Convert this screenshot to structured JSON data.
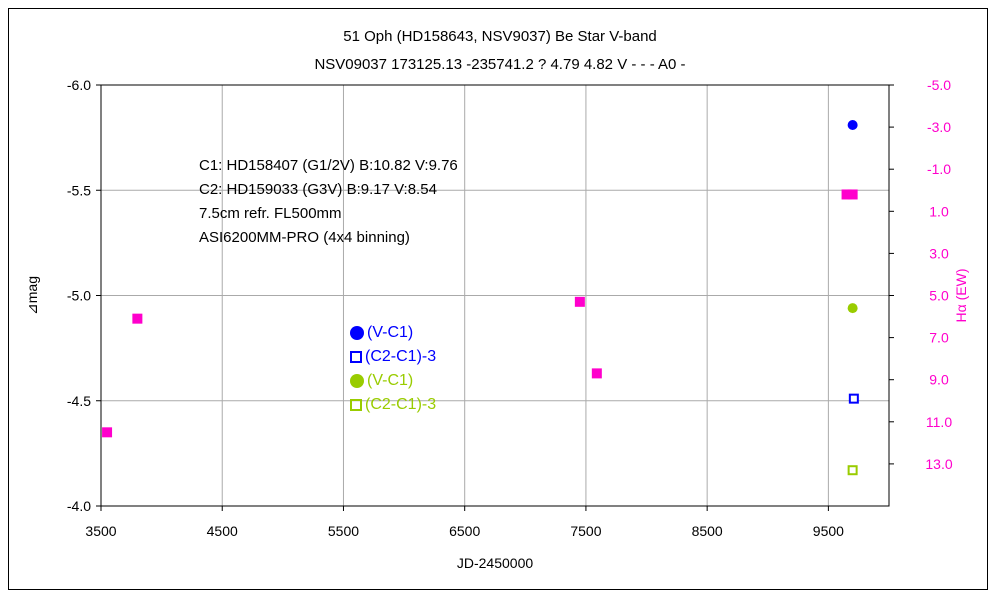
{
  "chart_data": {
    "type": "scatter",
    "title": "51 Oph (HD158643, NSV9037)    Be Star    V-band",
    "subtitle": "NSV09037 173125.13 -235741.2 ? 4.79 4.82 V - - - A0 -",
    "xlabel": "JD-2450000",
    "ylabel": "⊿mag",
    "y2label": "Hα (EW)",
    "xlim": [
      3500,
      10000
    ],
    "ylim": [
      -6.0,
      -4.0
    ],
    "y_inverted": true,
    "y2lim": [
      -5.0,
      15.0
    ],
    "x_ticks": [
      "3500",
      "4500",
      "5500",
      "6500",
      "7500",
      "8500",
      "9500"
    ],
    "y_ticks": [
      "-6.0",
      "-5.5",
      "-5.0",
      "-4.5",
      "-4.0"
    ],
    "y2_ticks": [
      "-5.0",
      "-3.0",
      "-1.0",
      "1.0",
      "3.0",
      "5.0",
      "7.0",
      "9.0",
      "11.0",
      "13.0"
    ],
    "grid": true,
    "series": [
      {
        "name": "(V-C1)",
        "color": "#0000ff",
        "marker": "filled-circle",
        "axis": "left",
        "points": [
          {
            "x": 9700,
            "y": -5.81
          }
        ]
      },
      {
        "name": "(C2-C1)-3",
        "color": "#0000ff",
        "marker": "open-square",
        "axis": "left",
        "points": [
          {
            "x": 9710,
            "y": -4.51
          }
        ]
      },
      {
        "name": "(V-C1)",
        "color": "#99cc00",
        "marker": "filled-circle",
        "axis": "left",
        "points": [
          {
            "x": 9700,
            "y": -4.94
          }
        ]
      },
      {
        "name": "(C2-C1)-3",
        "color": "#99cc00",
        "marker": "open-square",
        "axis": "left",
        "points": [
          {
            "x": 9700,
            "y": -4.17
          }
        ]
      },
      {
        "name": "",
        "color": "#ff00cc",
        "marker": "filled-square",
        "axis": "right",
        "points": [
          {
            "x": 3550,
            "y": 11.5
          },
          {
            "x": 3800,
            "y": 6.1
          },
          {
            "x": 7450,
            "y": 5.3
          },
          {
            "x": 7590,
            "y": 8.7
          },
          {
            "x": 9650,
            "y": 0.2
          },
          {
            "x": 9700,
            "y": 0.2
          }
        ]
      }
    ]
  },
  "notes": [
    "C1: HD158407 (G1/2V)  B:10.82 V:9.76",
    "C2: HD159033 (G3V)  B:9.17 V:8.54",
    "7.5cm refr. FL500mm",
    "ASI6200MM-PRO (4x4 binning)"
  ],
  "legend": [
    {
      "label": "(V-C1)",
      "color": "#0000ff",
      "marker": "filled-circle"
    },
    {
      "label": "(C2-C1)-3",
      "color": "#0000ff",
      "marker": "open-square"
    },
    {
      "label": "(V-C1)",
      "color": "#99cc00",
      "marker": "filled-circle"
    },
    {
      "label": "(C2-C1)-3",
      "color": "#99cc00",
      "marker": "open-square"
    }
  ]
}
